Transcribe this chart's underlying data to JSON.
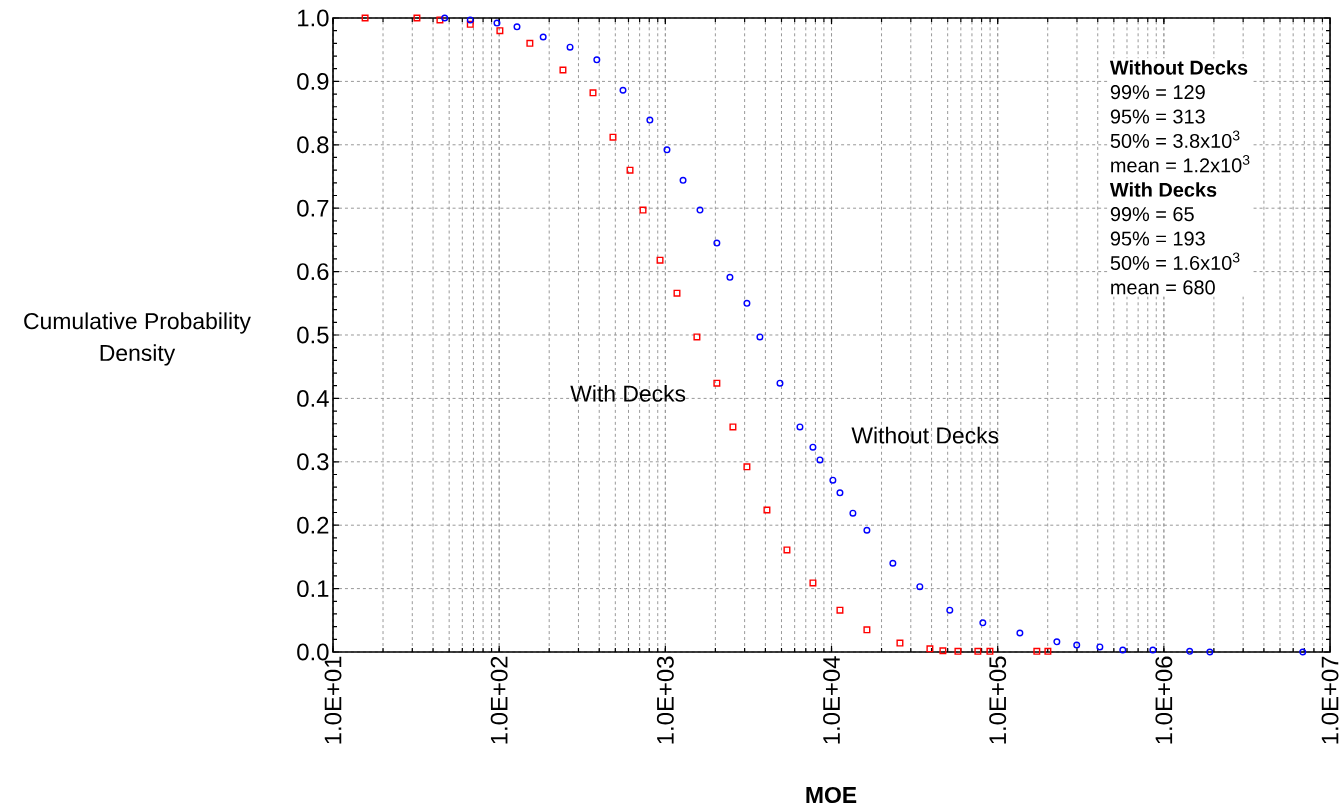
{
  "chart_data": {
    "type": "scatter",
    "xlabel": "MOE",
    "ylabel": "Cumulative Probability\nDensity",
    "log": "x",
    "grid": true,
    "xlim": [
      10,
      10000000
    ],
    "ylim": [
      0,
      1
    ],
    "xticks": [
      {
        "value": 10,
        "label": "1.0E+01"
      },
      {
        "value": 100,
        "label": "1.0E+02"
      },
      {
        "value": 1000,
        "label": "1.0E+03"
      },
      {
        "value": 10000,
        "label": "1.0E+04"
      },
      {
        "value": 100000,
        "label": "1.0E+05"
      },
      {
        "value": 1000000,
        "label": "1.0E+06"
      },
      {
        "value": 10000000,
        "label": "1.0E+07"
      }
    ],
    "yticks": [
      {
        "value": 0,
        "label": "0.0"
      },
      0.1,
      0.2,
      0.3,
      0.4,
      0.5,
      0.6,
      0.7,
      0.8,
      0.9,
      {
        "value": 1,
        "label": "1.0"
      }
    ],
    "series": [
      {
        "name": "With Decks",
        "color": "#ff0000",
        "marker": "square",
        "x": [
          15.6,
          32,
          44,
          67,
          101,
          153,
          242,
          367,
          484,
          613,
          734,
          929,
          1175,
          1549,
          2042,
          2551,
          3097,
          4087,
          5393,
          7730,
          11240,
          16330,
          25810,
          39100,
          46800,
          57650,
          76000,
          89800,
          172000,
          200500
        ],
        "values": [
          1.0,
          1.0,
          0.997,
          0.99,
          0.98,
          0.96,
          0.918,
          0.882,
          0.812,
          0.76,
          0.697,
          0.618,
          0.566,
          0.497,
          0.424,
          0.355,
          0.292,
          0.224,
          0.161,
          0.109,
          0.066,
          0.035,
          0.014,
          0.005,
          0.002,
          0.001,
          0.001,
          0.001,
          0.001,
          0.001
        ]
      },
      {
        "name": "Without Decks",
        "color": "#0000ff",
        "marker": "circle",
        "x": [
          47,
          67,
          97,
          128,
          184,
          267,
          387,
          556,
          807,
          1023,
          1278,
          1616,
          2042,
          2447,
          3097,
          3707,
          4896,
          6457,
          7730,
          8517,
          10190,
          11240,
          13450,
          16330,
          23400,
          34000,
          51500,
          81400,
          136000,
          227000,
          299000,
          412000,
          566000,
          859000,
          1430000,
          1890000,
          6850000
        ],
        "values": [
          1.0,
          0.997,
          0.992,
          0.986,
          0.97,
          0.954,
          0.934,
          0.886,
          0.839,
          0.792,
          0.744,
          0.697,
          0.645,
          0.591,
          0.55,
          0.497,
          0.424,
          0.355,
          0.323,
          0.303,
          0.271,
          0.251,
          0.219,
          0.192,
          0.14,
          0.103,
          0.066,
          0.046,
          0.03,
          0.016,
          0.011,
          0.008,
          0.003,
          0.003,
          0.001,
          0.0,
          0.0
        ]
      }
    ],
    "annotations": [
      "**Without Decks**",
      "99% = 129",
      "95% = 313",
      "50% = 3.8x10$^{3}$",
      "mean = 1.2x10$^{3}$",
      "**With Decks**",
      "99% = 65",
      "95% = 193",
      "50% = 1.6x10$^{3}$",
      "mean = 680"
    ]
  }
}
